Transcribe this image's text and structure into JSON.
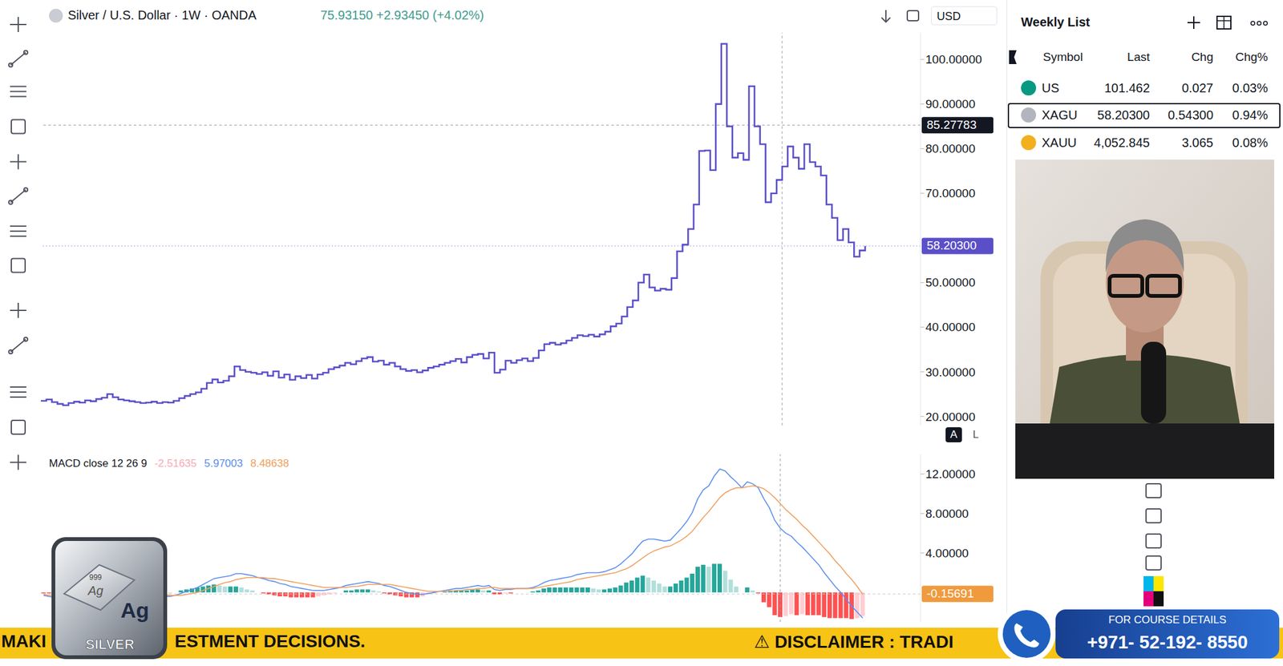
{
  "screen": {
    "toolbar": {
      "currency": "USD"
    },
    "scale_buttons": [
      "A",
      "L"
    ],
    "watchlist": {
      "title": "Weekly List",
      "columns": [
        "Symbol",
        "Last",
        "Chg",
        "Chg%"
      ],
      "rows": [
        {
          "symbol": "US",
          "last": "101.462",
          "chg": "0.027",
          "chg_pct": "0.03%",
          "color": "#089981"
        },
        {
          "symbol": "XAGU",
          "last": "58.20300",
          "chg": "0.54300",
          "chg_pct": "0.94%",
          "color": "#b2b5be",
          "selected": true
        },
        {
          "symbol": "XAUU",
          "last": "4,052.845",
          "chg": "3.065",
          "chg_pct": "0.08%",
          "color": "#f2b01e"
        }
      ]
    },
    "banner": [
      "MAKI",
      "ESTMENT DECISIONS.",
      "⚠ DISCLAIMER : TRADI"
    ],
    "contact": {
      "title": "FOR COURSE DETAILS",
      "phone": "+971- 52-192- 8550"
    },
    "logo": {
      "purity": "999",
      "symbol": "Ag",
      "label": "SILVER"
    }
  },
  "chart_data": [
    {
      "type": "line",
      "title": "Silver / U.S. Dollar · 1W · OANDA",
      "subtitle": "75.93150 +2.93450 (+4.02%)",
      "tick_labels": "y",
      "grid": false,
      "ylim": [
        18,
        106
      ],
      "yticks": [
        {
          "value": 20,
          "label": "20.00000"
        },
        {
          "value": 30,
          "label": "30.00000"
        },
        {
          "value": 40,
          "label": "40.00000"
        },
        {
          "value": 50,
          "label": "50.00000"
        },
        {
          "value": 70,
          "label": "70.00000"
        },
        {
          "value": 80,
          "label": "80.00000"
        },
        {
          "value": 90,
          "label": "90.00000"
        },
        {
          "value": 100,
          "label": "100.00000"
        }
      ],
      "annotations": {
        "crosshair": {
          "x": 134,
          "y": 85.27783
        },
        "last_price": {
          "value": 58.203,
          "label": "58.20300"
        }
      },
      "series": [
        {
          "color": "#5b4fc9",
          "line_style": "step",
          "values": [
            23.5,
            23.8,
            23.2,
            22.8,
            22.5,
            23.0,
            23.3,
            23.1,
            23.6,
            23.4,
            23.9,
            24.2,
            25.0,
            24.3,
            23.8,
            23.6,
            23.4,
            23.2,
            23.0,
            23.1,
            23.3,
            23.0,
            23.2,
            23.1,
            23.5,
            24.1,
            24.6,
            25.0,
            25.4,
            26.2,
            27.5,
            28.3,
            27.6,
            28.0,
            29.0,
            31.2,
            30.4,
            30.0,
            29.8,
            29.5,
            29.9,
            29.1,
            30.1,
            28.7,
            29.4,
            28.2,
            29.0,
            28.6,
            29.3,
            28.5,
            29.4,
            29.8,
            30.6,
            31.0,
            31.4,
            32.0,
            31.7,
            32.4,
            33.0,
            33.3,
            32.3,
            32.5,
            31.6,
            32.0,
            31.2,
            30.6,
            30.2,
            30.4,
            29.9,
            30.3,
            30.9,
            31.2,
            31.6,
            32.0,
            32.4,
            32.9,
            32.1,
            33.3,
            33.8,
            34.0,
            33.0,
            34.3,
            29.8,
            30.5,
            32.5,
            32.0,
            32.6,
            33.0,
            32.4,
            33.1,
            34.8,
            36.2,
            36.5,
            36.1,
            36.4,
            37.0,
            37.6,
            38.2,
            38.0,
            38.3,
            37.9,
            38.4,
            39.0,
            40.2,
            40.8,
            42.4,
            44.5,
            46.0,
            50.0,
            51.8,
            48.9,
            48.2,
            48.6,
            48.4,
            51.0,
            57.0,
            58.5,
            62.0,
            67.5,
            79.5,
            79.6,
            75.2,
            90.0,
            103.5,
            85.0,
            78.0,
            79.0,
            77.5,
            94.0,
            85.0,
            81.0,
            68.0,
            70.0,
            73.0,
            76.0,
            80.5,
            78.0,
            75.5,
            81.0,
            77.0,
            76.0,
            74.0,
            67.5,
            64.5,
            59.5,
            62.0,
            59.0,
            55.8,
            57.2,
            58.203,
            null,
            null,
            null,
            null,
            null,
            null,
            null,
            null,
            null,
            null
          ]
        }
      ]
    },
    {
      "type": "line",
      "title": "MACD close 12 26 9",
      "tick_labels": "y",
      "grid": false,
      "ylim": [
        -3,
        14
      ],
      "yticks": [
        {
          "value": 4,
          "label": "4.00000"
        },
        {
          "value": 8,
          "label": "8.00000"
        },
        {
          "value": 12,
          "label": "12.00000"
        }
      ],
      "annotations": {
        "last_value": -0.15691
      },
      "series": [
        {
          "type": "bar",
          "color": "#f7a9b4",
          "readout": -2.51635,
          "values": [
            -0.1,
            -0.1,
            -0.2,
            -0.2,
            -0.2,
            -0.1,
            0.0,
            0.1,
            0.2,
            0.3,
            0.3,
            0.3,
            0.4,
            0.3,
            0.1,
            0.0,
            -0.1,
            -0.1,
            -0.2,
            -0.2,
            -0.2,
            -0.2,
            -0.2,
            -0.1,
            0.0,
            0.2,
            0.3,
            0.4,
            0.5,
            0.6,
            0.7,
            0.8,
            0.7,
            0.6,
            0.6,
            0.6,
            0.5,
            0.3,
            0.2,
            0.0,
            -0.1,
            -0.2,
            -0.3,
            -0.4,
            -0.4,
            -0.5,
            -0.5,
            -0.5,
            -0.5,
            -0.5,
            -0.4,
            -0.3,
            -0.2,
            -0.1,
            0.0,
            0.2,
            0.2,
            0.3,
            0.3,
            0.3,
            0.2,
            0.1,
            -0.1,
            -0.2,
            -0.3,
            -0.4,
            -0.5,
            -0.5,
            -0.5,
            -0.4,
            -0.2,
            -0.1,
            0.0,
            0.1,
            0.2,
            0.2,
            0.2,
            0.2,
            0.3,
            0.3,
            0.2,
            0.2,
            -0.2,
            -0.2,
            -0.1,
            -0.1,
            0.0,
            0.0,
            0.0,
            0.1,
            0.2,
            0.4,
            0.5,
            0.5,
            0.5,
            0.5,
            0.5,
            0.5,
            0.5,
            0.5,
            0.4,
            0.3,
            0.3,
            0.4,
            0.5,
            0.7,
            1.0,
            1.2,
            1.5,
            1.7,
            1.5,
            1.2,
            0.9,
            0.6,
            0.6,
            0.9,
            1.2,
            1.5,
            1.9,
            2.6,
            2.8,
            2.6,
            2.9,
            2.9,
            2.2,
            1.3,
            0.6,
            0.0,
            0.5,
            0.2,
            -0.1,
            -1.0,
            -1.5,
            -2.3,
            -2.5,
            -2.4,
            -2.2,
            -2.3,
            -2.2,
            -2.3,
            -2.3,
            -2.3,
            -2.5,
            -2.6,
            -2.6,
            -2.6,
            -2.6,
            -2.7,
            -2.6,
            -2.4,
            null,
            null,
            null,
            null,
            null,
            null,
            null,
            null,
            null,
            null
          ]
        },
        {
          "type": "line",
          "color": "#5b8def",
          "readout": 5.97003,
          "values": [
            -0.3,
            -0.4,
            -0.5,
            -0.6,
            -0.7,
            -0.6,
            -0.5,
            -0.4,
            -0.2,
            -0.1,
            0.0,
            0.1,
            0.3,
            0.3,
            0.2,
            0.1,
            0.0,
            -0.1,
            -0.2,
            -0.3,
            -0.3,
            -0.4,
            -0.4,
            -0.4,
            -0.3,
            -0.1,
            0.1,
            0.3,
            0.5,
            0.8,
            1.1,
            1.4,
            1.5,
            1.6,
            1.7,
            1.9,
            1.9,
            1.8,
            1.7,
            1.5,
            1.4,
            1.2,
            1.1,
            0.9,
            0.8,
            0.6,
            0.5,
            0.4,
            0.3,
            0.2,
            0.2,
            0.2,
            0.3,
            0.4,
            0.5,
            0.7,
            0.8,
            0.9,
            1.0,
            1.1,
            1.0,
            0.9,
            0.7,
            0.6,
            0.4,
            0.2,
            0.0,
            -0.1,
            -0.2,
            -0.2,
            -0.1,
            0.0,
            0.1,
            0.2,
            0.3,
            0.4,
            0.4,
            0.5,
            0.6,
            0.7,
            0.6,
            0.7,
            0.3,
            0.2,
            0.3,
            0.3,
            0.4,
            0.4,
            0.4,
            0.5,
            0.7,
            1.0,
            1.2,
            1.3,
            1.4,
            1.5,
            1.6,
            1.8,
            1.9,
            2.0,
            2.0,
            2.0,
            2.1,
            2.3,
            2.5,
            2.9,
            3.4,
            3.9,
            4.6,
            5.2,
            5.4,
            5.4,
            5.3,
            5.2,
            5.3,
            5.9,
            6.5,
            7.2,
            8.1,
            9.5,
            10.4,
            10.8,
            11.8,
            12.5,
            12.3,
            11.7,
            11.2,
            10.6,
            11.2,
            11.0,
            10.6,
            9.5,
            8.6,
            7.3,
            6.5,
            6.0,
            5.7,
            5.1,
            4.6,
            4.0,
            3.4,
            2.8,
            2.0,
            1.3,
            0.6,
            0.0,
            -0.7,
            -1.4,
            -2.0,
            -2.6,
            null,
            null,
            null,
            null,
            null,
            null,
            null,
            null,
            null,
            null
          ]
        },
        {
          "type": "line",
          "color": "#f0a060",
          "readout": 8.48638,
          "values": [
            -0.2,
            -0.3,
            -0.3,
            -0.4,
            -0.5,
            -0.5,
            -0.5,
            -0.5,
            -0.4,
            -0.4,
            -0.3,
            -0.2,
            -0.1,
            0.0,
            0.1,
            0.1,
            0.1,
            0.0,
            0.0,
            -0.1,
            -0.1,
            -0.2,
            -0.2,
            -0.3,
            -0.3,
            -0.3,
            -0.2,
            -0.1,
            0.0,
            0.2,
            0.4,
            0.6,
            0.8,
            1.0,
            1.1,
            1.3,
            1.4,
            1.5,
            1.5,
            1.5,
            1.5,
            1.4,
            1.4,
            1.3,
            1.2,
            1.1,
            1.0,
            0.9,
            0.8,
            0.7,
            0.6,
            0.5,
            0.5,
            0.5,
            0.5,
            0.5,
            0.6,
            0.6,
            0.7,
            0.8,
            0.8,
            0.8,
            0.8,
            0.8,
            0.7,
            0.6,
            0.5,
            0.4,
            0.3,
            0.2,
            0.1,
            0.1,
            0.1,
            0.1,
            0.1,
            0.2,
            0.2,
            0.3,
            0.3,
            0.4,
            0.4,
            0.5,
            0.5,
            0.4,
            0.4,
            0.4,
            0.4,
            0.4,
            0.4,
            0.4,
            0.5,
            0.6,
            0.7,
            0.8,
            0.9,
            1.0,
            1.1,
            1.3,
            1.4,
            1.5,
            1.6,
            1.7,
            1.8,
            1.9,
            2.0,
            2.2,
            2.4,
            2.7,
            3.1,
            3.5,
            3.9,
            4.2,
            4.4,
            4.6,
            4.7,
            5.0,
            5.3,
            5.7,
            6.2,
            6.9,
            7.6,
            8.2,
            8.9,
            9.6,
            10.1,
            10.4,
            10.6,
            10.6,
            10.7,
            10.8,
            10.7,
            10.5,
            10.1,
            9.6,
            9.0,
            8.4,
            7.9,
            7.4,
            6.8,
            6.3,
            5.7,
            5.1,
            4.5,
            3.9,
            3.2,
            2.6,
            1.9,
            1.3,
            0.6,
            -0.2,
            null,
            null,
            null,
            null,
            null,
            null,
            null,
            null,
            null,
            null
          ]
        }
      ]
    }
  ]
}
